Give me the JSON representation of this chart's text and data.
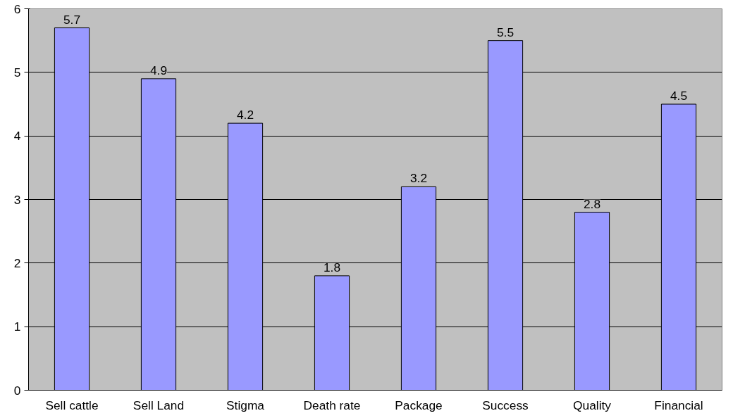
{
  "chart_data": {
    "type": "bar",
    "categories": [
      "Sell cattle",
      "Sell Land",
      "Stigma",
      "Death rate",
      "Package",
      "Success",
      "Quality",
      "Financial"
    ],
    "values": [
      5.7,
      4.9,
      4.2,
      1.8,
      3.2,
      5.5,
      2.8,
      4.5
    ],
    "color": "#9999ff",
    "ylim": [
      0,
      6
    ],
    "yticks": [
      0,
      1,
      2,
      3,
      4,
      5,
      6
    ],
    "grid": "y",
    "data_labels": true
  }
}
